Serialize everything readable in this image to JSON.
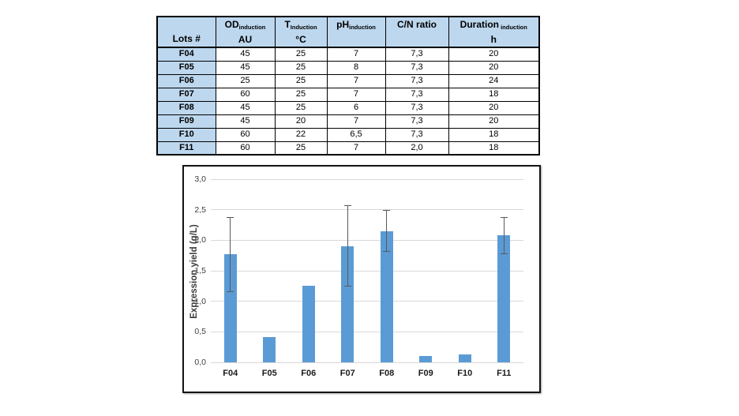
{
  "table": {
    "header_bg": "#BDD7EE",
    "columns": [
      {
        "main": "Lots #",
        "sub": "",
        "unit": ""
      },
      {
        "main": "OD",
        "sub": "induction",
        "unit": "AU"
      },
      {
        "main": "T",
        "sub": "Induction",
        "unit": "°C"
      },
      {
        "main": "pH",
        "sub": "induction",
        "unit": ""
      },
      {
        "main": "C/N ratio",
        "sub": "",
        "unit": ""
      },
      {
        "main": "Duration",
        "sub": " induction",
        "unit": "h"
      }
    ],
    "rows": [
      [
        "F04",
        "45",
        "25",
        "7",
        "7,3",
        "20"
      ],
      [
        "F05",
        "45",
        "25",
        "8",
        "7,3",
        "20"
      ],
      [
        "F06",
        "25",
        "25",
        "7",
        "7,3",
        "24"
      ],
      [
        "F07",
        "60",
        "25",
        "7",
        "7,3",
        "18"
      ],
      [
        "F08",
        "45",
        "25",
        "6",
        "7,3",
        "20"
      ],
      [
        "F09",
        "45",
        "20",
        "7",
        "7,3",
        "20"
      ],
      [
        "F10",
        "60",
        "22",
        "6,5",
        "7,3",
        "18"
      ],
      [
        "F11",
        "60",
        "25",
        "7",
        "2,0",
        "18"
      ]
    ]
  },
  "chart_data": {
    "type": "bar",
    "title": "",
    "xlabel": "",
    "ylabel": "Expression yield (g/L)",
    "categories": [
      "F04",
      "F05",
      "F06",
      "F07",
      "F08",
      "F09",
      "F10",
      "F11"
    ],
    "values": [
      1.77,
      0.42,
      1.25,
      1.9,
      2.15,
      0.1,
      0.13,
      2.08
    ],
    "error_high": [
      2.38,
      null,
      null,
      2.57,
      2.49,
      null,
      null,
      2.38
    ],
    "error_low": [
      1.17,
      null,
      null,
      1.25,
      1.82,
      null,
      null,
      1.78
    ],
    "ylim": [
      0,
      3
    ],
    "ytick_step": 0.5,
    "ytick_labels": [
      "0,0",
      "0,5",
      "1,0",
      "1,5",
      "2,0",
      "2,5",
      "3,0"
    ],
    "grid": "horizontal",
    "legend": "none",
    "bar_color": "#5B9BD5",
    "error_color": "#595959"
  }
}
